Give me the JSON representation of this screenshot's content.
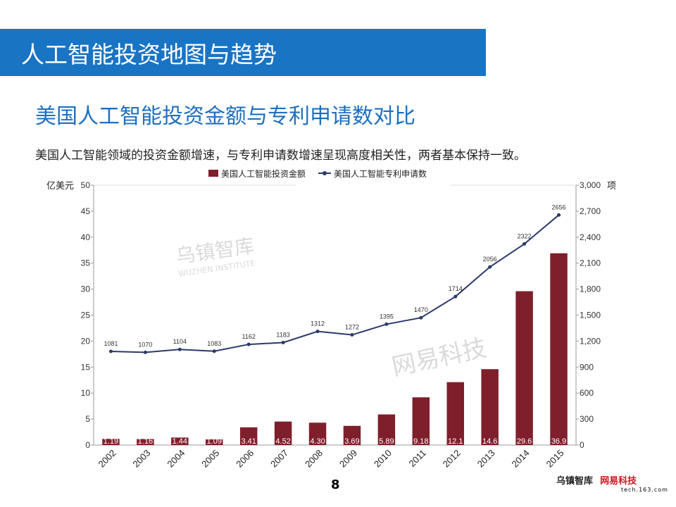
{
  "header": {
    "title": "人工智能投资地图与趋势"
  },
  "slide": {
    "subtitle": "美国人工智能投资金额与专利申请数对比",
    "description": "美国人工智能领域的投资金额增速，与专利申请数增速呈现高度相关性，两者基本保持一致。",
    "page_number": "8"
  },
  "watermarks": {
    "wuzhen": "乌镇智库",
    "wuzhen_en": "WUZHEN INSTITUTE",
    "netease": "网易科技",
    "netease_url": "tech.163.com"
  },
  "chart_data": {
    "type": "bar+line",
    "categories": [
      "2002",
      "2003",
      "2004",
      "2005",
      "2006",
      "2007",
      "2008",
      "2009",
      "2010",
      "2011",
      "2012",
      "2013",
      "2014",
      "2015"
    ],
    "series": [
      {
        "name": "美国人工智能投资金额",
        "type": "bar",
        "axis": "left",
        "color": "#7f1f2b",
        "values": [
          1.19,
          1.16,
          1.44,
          1.09,
          3.41,
          4.52,
          4.3,
          3.69,
          5.89,
          9.18,
          12.1,
          14.6,
          29.6,
          36.9
        ],
        "labels": [
          "1.19",
          "1.16",
          "1.44",
          "1.09",
          "3.41",
          "4.52",
          "4.30",
          "3.69",
          "5.89",
          "9.18",
          "12.1",
          "14.6",
          "29.6",
          "36.9"
        ]
      },
      {
        "name": "美国人工智能专利申请数",
        "type": "line",
        "axis": "right",
        "color": "#2b3a6b",
        "values": [
          1081,
          1070,
          1104,
          1083,
          1162,
          1183,
          1312,
          1272,
          1395,
          1470,
          1714,
          2056,
          2322,
          2656
        ]
      }
    ],
    "left_axis": {
      "unit": "亿美元",
      "range": [
        0,
        50
      ],
      "ticks": [
        "0",
        "5",
        "10",
        "15",
        "20",
        "25",
        "30",
        "35",
        "40",
        "45",
        "50"
      ]
    },
    "right_axis": {
      "unit": "项",
      "range": [
        0,
        3000
      ],
      "ticks": [
        "0",
        "300",
        "600",
        "900",
        "1,200",
        "1,500",
        "1,800",
        "2,100",
        "2,400",
        "2,700",
        "3,000"
      ]
    },
    "legend": "top",
    "grid": false
  }
}
